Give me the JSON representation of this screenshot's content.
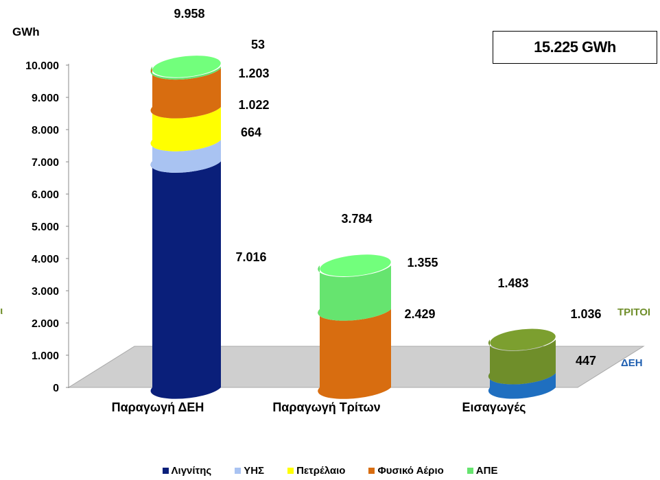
{
  "header": {
    "unit_label": "GWh",
    "total": "15.225 GWh"
  },
  "colors": {
    "lignite": "#0a1f7a",
    "hydro": "#a9c3f2",
    "oil": "#ffff00",
    "gas": "#d86d10",
    "res": "#66e46f",
    "imp_tritoi": "#6f8e2a",
    "imp_deh": "#1f6fc0",
    "floor": "#cfcfcf"
  },
  "side_labels": {
    "left_clip": "οι",
    "tritoi": "ΤΡΙΤΟΙ",
    "deh": "ΔΕΗ"
  },
  "chart_data": {
    "type": "bar",
    "stacked": true,
    "three_d": "cylinder",
    "ylabel": "GWh",
    "ylim": [
      0,
      10000
    ],
    "yticks": [
      "0",
      "1.000",
      "2.000",
      "3.000",
      "4.000",
      "5.000",
      "6.000",
      "7.000",
      "8.000",
      "9.000",
      "10.000"
    ],
    "categories": [
      "Παραγωγή ΔΕΗ",
      "Παραγωγή Τρίτων",
      "Εισαγωγές"
    ],
    "bars": [
      {
        "category": "Παραγωγή ΔΕΗ",
        "total_label": "9.958",
        "segments": [
          {
            "series": "Λιγνίτης",
            "value": 7016,
            "label": "7.016",
            "color_key": "lignite"
          },
          {
            "series": "ΥΗΣ",
            "value": 664,
            "label": "664",
            "color_key": "hydro"
          },
          {
            "series": "Πετρέλαιο",
            "value": 1022,
            "label": "1.022",
            "color_key": "oil"
          },
          {
            "series": "Φυσικό Αέριο",
            "value": 1203,
            "label": "1.203",
            "color_key": "gas"
          },
          {
            "series": "ΑΠΕ",
            "value": 53,
            "label": "53",
            "color_key": "res"
          }
        ]
      },
      {
        "category": "Παραγωγή Τρίτων",
        "total_label": "3.784",
        "segments": [
          {
            "series": "Φυσικό Αέριο",
            "value": 2429,
            "label": "2.429",
            "color_key": "gas"
          },
          {
            "series": "ΑΠΕ",
            "value": 1355,
            "label": "1.355",
            "color_key": "res"
          }
        ]
      },
      {
        "category": "Εισαγωγές",
        "total_label": "1.483",
        "segments": [
          {
            "series": "ΔΕΗ",
            "value": 447,
            "label": "447",
            "color_key": "imp_deh"
          },
          {
            "series": "ΤΡΙΤΟΙ",
            "value": 1036,
            "label": "1.036",
            "color_key": "imp_tritoi"
          }
        ]
      }
    ],
    "legend": [
      {
        "name": "Λιγνίτης",
        "color_key": "lignite"
      },
      {
        "name": "ΥΗΣ",
        "color_key": "hydro"
      },
      {
        "name": "Πετρέλαιο",
        "color_key": "oil"
      },
      {
        "name": "Φυσικό Αέριο",
        "color_key": "gas"
      },
      {
        "name": "ΑΠΕ",
        "color_key": "res"
      }
    ],
    "legend_position": "bottom"
  }
}
